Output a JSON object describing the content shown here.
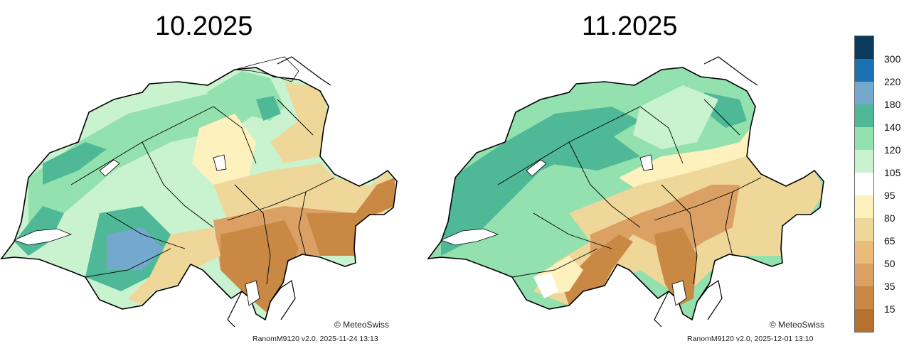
{
  "panels": [
    {
      "title": "10.2025",
      "credit": "© MeteoSwiss",
      "stamp": "RanomM9120 v2.0, 2025-11-24 13:13"
    },
    {
      "title": "11.2025",
      "credit": "© MeteoSwiss",
      "stamp": "RanomM9120 v2.0, 2025-12-01 13:10"
    }
  ],
  "legend": {
    "labels": [
      "300",
      "220",
      "180",
      "140",
      "120",
      "105",
      "95",
      "80",
      "65",
      "50",
      "35",
      "15"
    ],
    "colors": [
      "#0b3a5c",
      "#1a72b5",
      "#74a8cc",
      "#4fb896",
      "#93e1ae",
      "#c9f3cf",
      "#ffffff",
      "#fdf1bd",
      "#efd79a",
      "#e9bd77",
      "#dba164",
      "#c98843",
      "#b7712f"
    ]
  },
  "colors": {
    "switzerland_outline": "#000000",
    "lakes": "#ffffff"
  }
}
